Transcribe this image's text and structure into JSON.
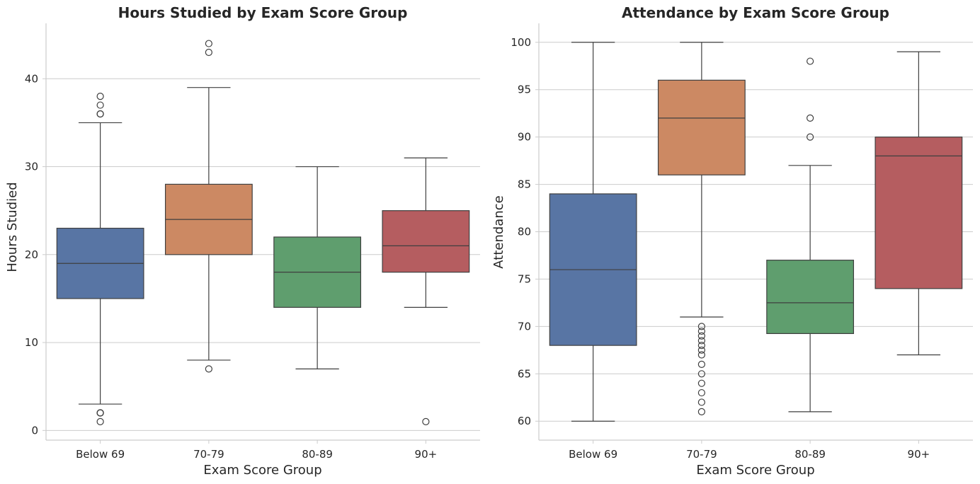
{
  "chart_data": [
    {
      "type": "box",
      "title": "Hours Studied by Exam Score Group",
      "xlabel": "Exam Score Group",
      "ylabel": "Hours Studied",
      "categories": [
        "Below 69",
        "70-79",
        "80-89",
        "90+"
      ],
      "colors": [
        "#5875a4",
        "#cc8963",
        "#5f9e6e",
        "#b55d60"
      ],
      "ylim": [
        -1.1,
        46.3
      ],
      "yticks": [
        0,
        10,
        20,
        30,
        40
      ],
      "grid": true,
      "boxes": [
        {
          "q1": 15,
          "median": 19,
          "q3": 23,
          "whislo": 3,
          "whishi": 35,
          "fliers": [
            1,
            2,
            2,
            2,
            36,
            36,
            37,
            38
          ]
        },
        {
          "q1": 20,
          "median": 24,
          "q3": 28,
          "whislo": 8,
          "whishi": 39,
          "fliers": [
            7,
            43,
            44
          ]
        },
        {
          "q1": 14,
          "median": 18,
          "q3": 22,
          "whislo": 7,
          "whishi": 30,
          "fliers": []
        },
        {
          "q1": 18,
          "median": 21,
          "q3": 25,
          "whislo": 14,
          "whishi": 31,
          "fliers": [
            1
          ]
        }
      ]
    },
    {
      "type": "box",
      "title": "Attendance by Exam Score Group",
      "xlabel": "Exam Score Group",
      "ylabel": "Attendance",
      "categories": [
        "Below 69",
        "70-79",
        "80-89",
        "90+"
      ],
      "colors": [
        "#5875a4",
        "#cc8963",
        "#5f9e6e",
        "#b55d60"
      ],
      "ylim": [
        58,
        102
      ],
      "yticks": [
        60,
        65,
        70,
        75,
        80,
        85,
        90,
        95,
        100
      ],
      "grid": true,
      "boxes": [
        {
          "q1": 68,
          "median": 76,
          "q3": 84,
          "whislo": 60,
          "whishi": 100,
          "fliers": []
        },
        {
          "q1": 86,
          "median": 92,
          "q3": 96,
          "whislo": 71,
          "whishi": 100,
          "fliers": [
            61,
            62,
            63,
            64,
            65,
            66,
            67,
            67.5,
            68,
            68.5,
            69,
            69.5,
            70
          ]
        },
        {
          "q1": 69.25,
          "median": 72.5,
          "q3": 77,
          "whislo": 61,
          "whishi": 87,
          "fliers": [
            90,
            92,
            98
          ]
        },
        {
          "q1": 74,
          "median": 88,
          "q3": 90,
          "whislo": 67,
          "whishi": 99,
          "fliers": []
        }
      ]
    }
  ]
}
